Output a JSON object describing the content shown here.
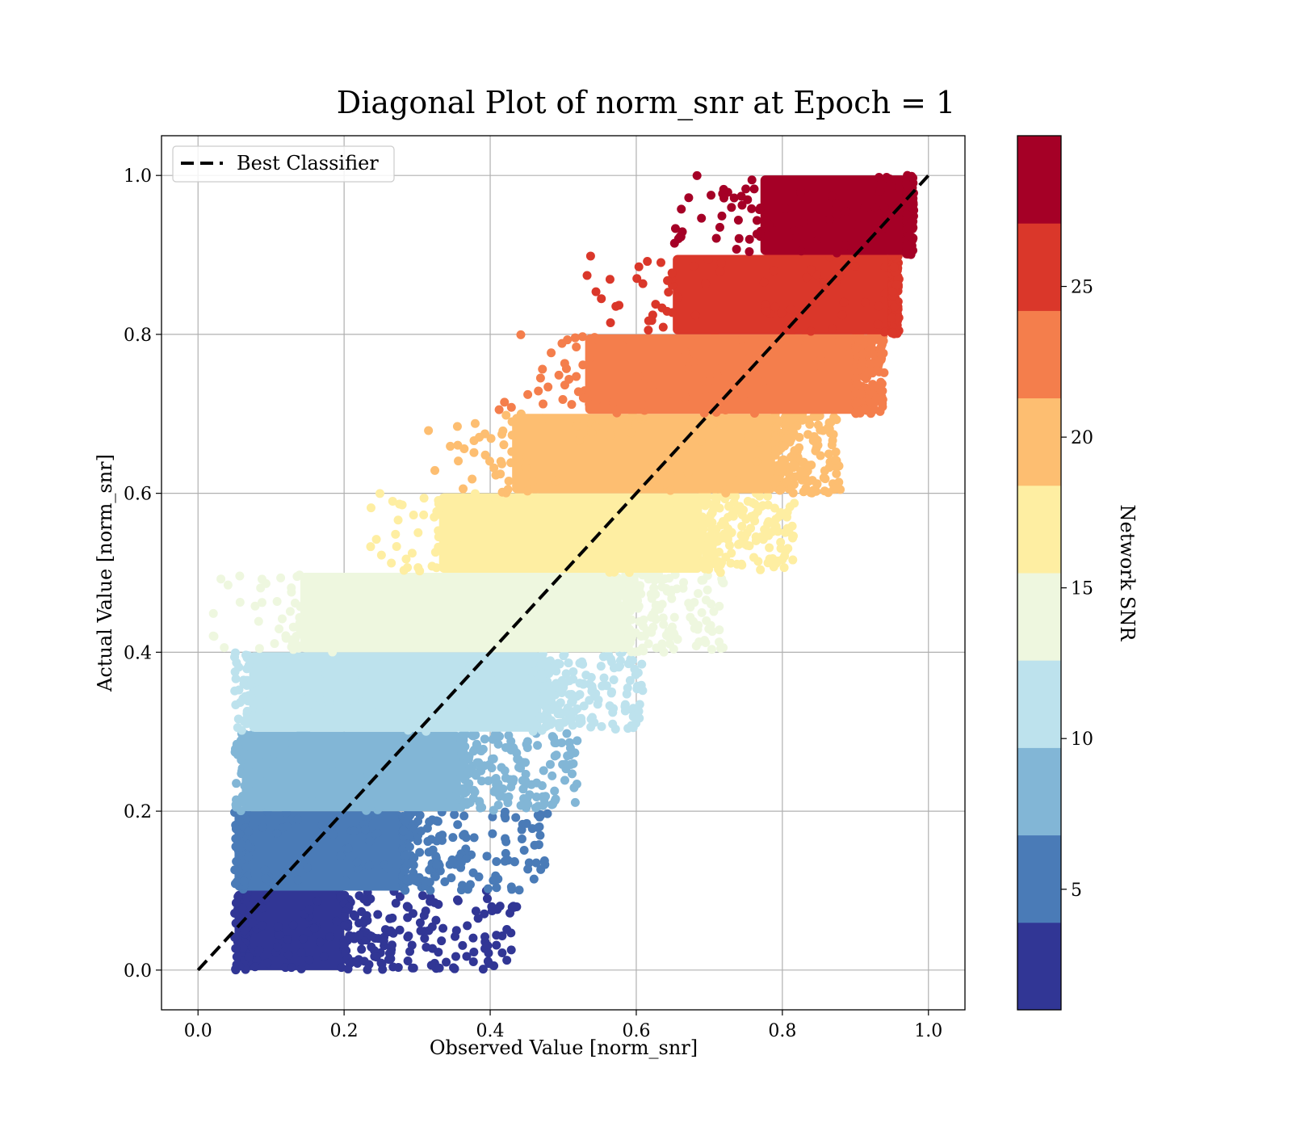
{
  "chart_data": {
    "type": "scatter",
    "title": "Diagonal Plot of norm_snr at Epoch = 1",
    "xlabel": "Observed Value [norm_snr]",
    "ylabel": "Actual Value [norm_snr]",
    "xlim": [
      -0.05,
      1.05
    ],
    "ylim": [
      -0.05,
      1.05
    ],
    "xticks": [
      "0.0",
      "0.2",
      "0.4",
      "0.6",
      "0.8",
      "1.0"
    ],
    "yticks": [
      "0.0",
      "0.2",
      "0.4",
      "0.6",
      "0.8",
      "1.0"
    ],
    "xtick_values": [
      0.0,
      0.2,
      0.4,
      0.6,
      0.8,
      1.0
    ],
    "ytick_values": [
      0.0,
      0.2,
      0.4,
      0.6,
      0.8,
      1.0
    ],
    "grid": true,
    "legend": {
      "position": "top-left",
      "entries": [
        {
          "label": "Best Classifier",
          "style": "dashed",
          "color": "#000000"
        }
      ]
    },
    "reference_line": {
      "name": "Best Classifier",
      "x": [
        0.0,
        1.0
      ],
      "y": [
        0.0,
        1.0
      ]
    },
    "colorbar": {
      "label": "Network SNR",
      "range": [
        1,
        30
      ],
      "ticks": [
        "5",
        "10",
        "15",
        "20",
        "25"
      ],
      "tick_values": [
        5,
        10,
        15,
        20,
        25
      ],
      "colors": [
        "#313695",
        "#4a7bb7",
        "#82b6d6",
        "#bde2ed",
        "#eef7df",
        "#feeea2",
        "#fdbe71",
        "#f47e4c",
        "#da372a",
        "#a50026"
      ]
    },
    "bands": [
      {
        "y_range": [
          0.0,
          0.1
        ],
        "x_core": [
          0.05,
          0.2
        ],
        "x_scatter_max": 0.44
      },
      {
        "y_range": [
          0.1,
          0.2
        ],
        "x_core": [
          0.05,
          0.28
        ],
        "x_scatter_max": 0.48
      },
      {
        "y_range": [
          0.2,
          0.3
        ],
        "x_core": [
          0.06,
          0.36
        ],
        "x_scatter_max": 0.52
      },
      {
        "y_range": [
          0.3,
          0.4
        ],
        "x_core": [
          0.07,
          0.47
        ],
        "x_scatter_max": 0.61
      },
      {
        "y_range": [
          0.4,
          0.5
        ],
        "x_core": [
          0.14,
          0.58
        ],
        "x_scatter_max": 0.72
      },
      {
        "y_range": [
          0.5,
          0.6
        ],
        "x_core": [
          0.33,
          0.69
        ],
        "x_scatter_max": 0.82
      },
      {
        "y_range": [
          0.6,
          0.7
        ],
        "x_core": [
          0.43,
          0.79
        ],
        "x_scatter_max": 0.88
      },
      {
        "y_range": [
          0.7,
          0.8
        ],
        "x_core": [
          0.53,
          0.9
        ],
        "x_scatter_max": 0.94
      },
      {
        "y_range": [
          0.8,
          0.9
        ],
        "x_core": [
          0.65,
          0.95
        ],
        "x_scatter_max": 0.96
      },
      {
        "y_range": [
          0.9,
          1.0
        ],
        "x_core": [
          0.77,
          0.97
        ],
        "x_scatter_max": 0.98
      }
    ]
  }
}
